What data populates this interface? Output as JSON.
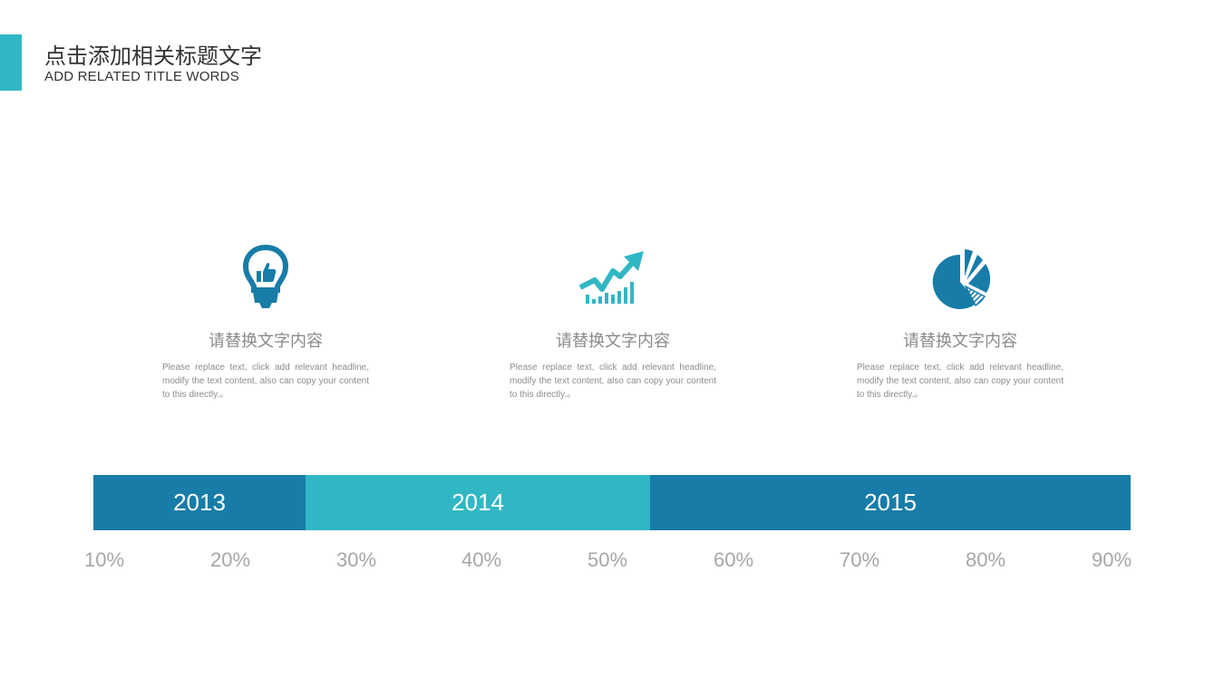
{
  "header": {
    "title": "点击添加相关标题文字",
    "subtitle": "ADD RELATED TITLE WORDS"
  },
  "colors": {
    "accent": "#31b7c4",
    "dark_blue": "#187ca8",
    "teal": "#31b7c4",
    "muted_text": "#8a8a8a"
  },
  "cards": [
    {
      "icon": "lightbulb-thumbs-up-icon",
      "title": "请替换文字内容",
      "body": "Please replace text, click add relevant headline, modify the text content, also can copy your content to this directly.。"
    },
    {
      "icon": "growth-chart-arrow-icon",
      "title": "请替换文字内容",
      "body": "Please replace text, click add relevant headline, modify the text content, also can copy your content to this directly.。"
    },
    {
      "icon": "pie-chart-icon",
      "title": "请替换文字内容",
      "body": "Please replace text, click add relevant headline, modify the text content, also can copy your content to this directly.。"
    }
  ],
  "timeline": {
    "segments": [
      {
        "label": "2013",
        "color": "#187ca8"
      },
      {
        "label": "2014",
        "color": "#31b7c4"
      },
      {
        "label": "2015",
        "color": "#187ca8"
      }
    ],
    "ticks": [
      "10%",
      "20%",
      "30%",
      "40%",
      "50%",
      "60%",
      "70%",
      "80%",
      "90%"
    ]
  }
}
